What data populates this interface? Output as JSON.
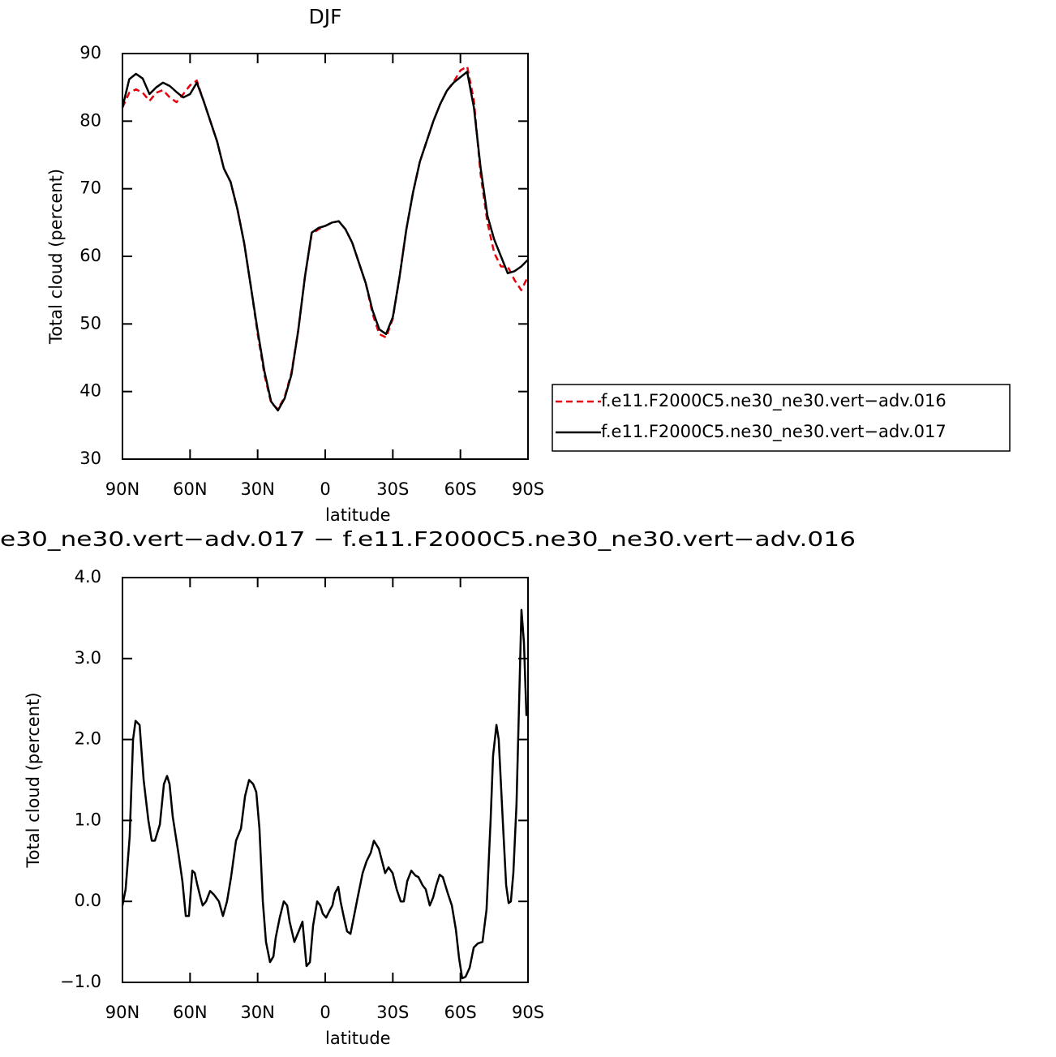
{
  "chart_data": [
    {
      "type": "line",
      "title": "DJF",
      "xlabel": "latitude",
      "ylabel": "Total cloud (percent)",
      "xlim": [
        90,
        -90
      ],
      "ylim": [
        30,
        90
      ],
      "xticks": [
        {
          "value": 90,
          "label": "90N"
        },
        {
          "value": 60,
          "label": "60N"
        },
        {
          "value": 30,
          "label": "30N"
        },
        0,
        {
          "value": -30,
          "label": "30S"
        },
        {
          "value": -60,
          "label": "60S"
        },
        {
          "value": -90,
          "label": "90S"
        }
      ],
      "yticks": [
        30,
        40,
        50,
        60,
        70,
        80,
        90
      ],
      "legend": "right",
      "x": [
        90,
        87,
        84,
        81,
        78,
        75,
        72,
        69,
        66,
        63,
        60,
        57,
        54,
        51,
        48,
        45,
        42,
        39,
        36,
        33,
        30,
        27,
        24,
        21,
        18,
        15,
        12,
        9,
        6,
        3,
        0,
        -3,
        -6,
        -9,
        -12,
        -15,
        -18,
        -21,
        -24,
        -27,
        -30,
        -33,
        -36,
        -39,
        -42,
        -45,
        -48,
        -51,
        -54,
        -57,
        -60,
        -63,
        -66,
        -69,
        -72,
        -75,
        -78,
        -81,
        -84,
        -87,
        -90
      ],
      "series": [
        {
          "name": "f.e11.F2000C5.ne30_ne30.vert−adv.016",
          "color": "#e8000b",
          "dashed": true,
          "values": [
            82,
            84.2,
            84.7,
            84.2,
            83,
            84.2,
            84.6,
            83.5,
            82.8,
            84,
            85.3,
            86,
            83,
            80,
            77,
            73,
            71,
            67,
            62,
            55.5,
            48.5,
            42.5,
            38.3,
            37.4,
            39.2,
            42.8,
            49,
            57,
            63.3,
            64,
            64.5,
            65,
            65.2,
            64,
            62,
            59,
            56,
            51.5,
            48.5,
            48,
            50.8,
            57,
            64,
            69.5,
            74,
            77,
            80,
            82.5,
            84.5,
            85.8,
            87.5,
            88.1,
            83,
            72,
            65,
            60.5,
            58.5,
            58.5,
            56.5,
            55,
            57
          ]
        },
        {
          "name": "f.e11.F2000C5.ne30_ne30.vert−adv.017",
          "color": "#000000",
          "dashed": false,
          "values": [
            82,
            86.2,
            87,
            86.3,
            84,
            85,
            85.7,
            85.2,
            84.3,
            83.5,
            84,
            85.7,
            83,
            80,
            77,
            73,
            71,
            67,
            62,
            55.5,
            49,
            43,
            38.5,
            37.2,
            39,
            42.5,
            49,
            57,
            63.5,
            64.2,
            64.5,
            65,
            65.2,
            64,
            62,
            59,
            56,
            52,
            49.2,
            48.5,
            51,
            57,
            64,
            69.5,
            74,
            77,
            80,
            82.5,
            84.5,
            85.7,
            86.5,
            87.3,
            82,
            73,
            66,
            62.5,
            60,
            57.5,
            57.8,
            58.5,
            59.5
          ]
        }
      ]
    },
    {
      "type": "line",
      "title": "e30_ne30.vert−adv.017 − f.e11.F2000C5.ne30_ne30.vert−adv.016",
      "xlabel": "latitude",
      "ylabel": "Total cloud (percent)",
      "xlim": [
        90,
        -90
      ],
      "ylim": [
        -1,
        4
      ],
      "xticks": [
        {
          "value": 90,
          "label": "90N"
        },
        {
          "value": 60,
          "label": "60N"
        },
        {
          "value": 30,
          "label": "30N"
        },
        0,
        {
          "value": -30,
          "label": "30S"
        },
        {
          "value": -60,
          "label": "60S"
        },
        {
          "value": -90,
          "label": "90S"
        }
      ],
      "yticks": [
        {
          "value": -1,
          "label": "−1.0"
        },
        {
          "value": 0,
          "label": "0.0"
        },
        {
          "value": 1,
          "label": "1.0"
        },
        {
          "value": 2,
          "label": "2.0"
        },
        {
          "value": 3,
          "label": "3.0"
        },
        {
          "value": 4,
          "label": "4.0"
        }
      ],
      "x": [
        90,
        88.6,
        86.8,
        85.3,
        84.2,
        82.4,
        80.6,
        78.5,
        77,
        75.6,
        73.4,
        71.6,
        70.2,
        69.1,
        67.7,
        65.2,
        63.4,
        61.9,
        60.5,
        59,
        57.9,
        56.9,
        55.4,
        54.4,
        52.9,
        51.1,
        49.3,
        47.2,
        45.4,
        43.6,
        41.8,
        39.6,
        37.4,
        35.6,
        33.8,
        32,
        30.6,
        29.2,
        27.7,
        26.3,
        24.5,
        23,
        22,
        20.2,
        18.4,
        16.9,
        15.8,
        13.7,
        11.5,
        10.1,
        8.3,
        6.8,
        5.4,
        3.6,
        2.2,
        1.1,
        -0.4,
        -2.2,
        -3.2,
        -4.3,
        -5.8,
        -6.8,
        -8.3,
        -9.7,
        -11.2,
        -13,
        -14.4,
        -16.6,
        -18.4,
        -20.2,
        -21.6,
        -23.8,
        -25.2,
        -26.6,
        -28.1,
        -29.9,
        -31.7,
        -33.5,
        -34.9,
        -36.4,
        -38.2,
        -40,
        -41.4,
        -43.2,
        -44.6,
        -46.4,
        -47.9,
        -49.3,
        -50.8,
        -52.2,
        -54.4,
        -56.2,
        -58,
        -59.4,
        -60.8,
        -62.3,
        -64.1,
        -65.9,
        -67.7,
        -69.8,
        -71.6,
        -73.4,
        -74.5,
        -76,
        -77,
        -78.8,
        -80.3,
        -81.4,
        -82.4,
        -83.5,
        -84.9,
        -87.1,
        -88.2,
        -89.3,
        -90
      ],
      "series": [
        {
          "color": "#000000",
          "dashed": false,
          "values": [
            -0.05,
            0.15,
            0.8,
            2,
            2.23,
            2.18,
            1.5,
            1,
            0.75,
            0.75,
            0.95,
            1.45,
            1.55,
            1.45,
            1.05,
            0.6,
            0.25,
            -0.18,
            -0.18,
            0.38,
            0.35,
            0.22,
            0.05,
            -0.05,
            0,
            0.13,
            0.08,
            0,
            -0.18,
            0,
            0.3,
            0.75,
            0.9,
            1.3,
            1.5,
            1.45,
            1.35,
            0.9,
            0,
            -0.5,
            -0.75,
            -0.68,
            -0.45,
            -0.2,
            0,
            -0.05,
            -0.25,
            -0.5,
            -0.35,
            -0.25,
            -0.8,
            -0.75,
            -0.3,
            0,
            -0.05,
            -0.15,
            -0.2,
            -0.1,
            -0.05,
            0.1,
            0.18,
            0,
            -0.2,
            -0.37,
            -0.4,
            -0.15,
            0.05,
            0.35,
            0.5,
            0.6,
            0.75,
            0.65,
            0.5,
            0.35,
            0.42,
            0.35,
            0.15,
            0,
            0,
            0.25,
            0.38,
            0.32,
            0.3,
            0.2,
            0.15,
            -0.05,
            0.05,
            0.2,
            0.33,
            0.3,
            0.1,
            -0.05,
            -0.35,
            -0.7,
            -0.95,
            -0.93,
            -0.82,
            -0.57,
            -0.52,
            -0.5,
            -0.1,
            1,
            1.8,
            2.18,
            2,
            1,
            0.2,
            -0.02,
            0,
            0.35,
            1.2,
            3.6,
            3.2,
            2.3,
            2.4
          ]
        }
      ]
    }
  ]
}
